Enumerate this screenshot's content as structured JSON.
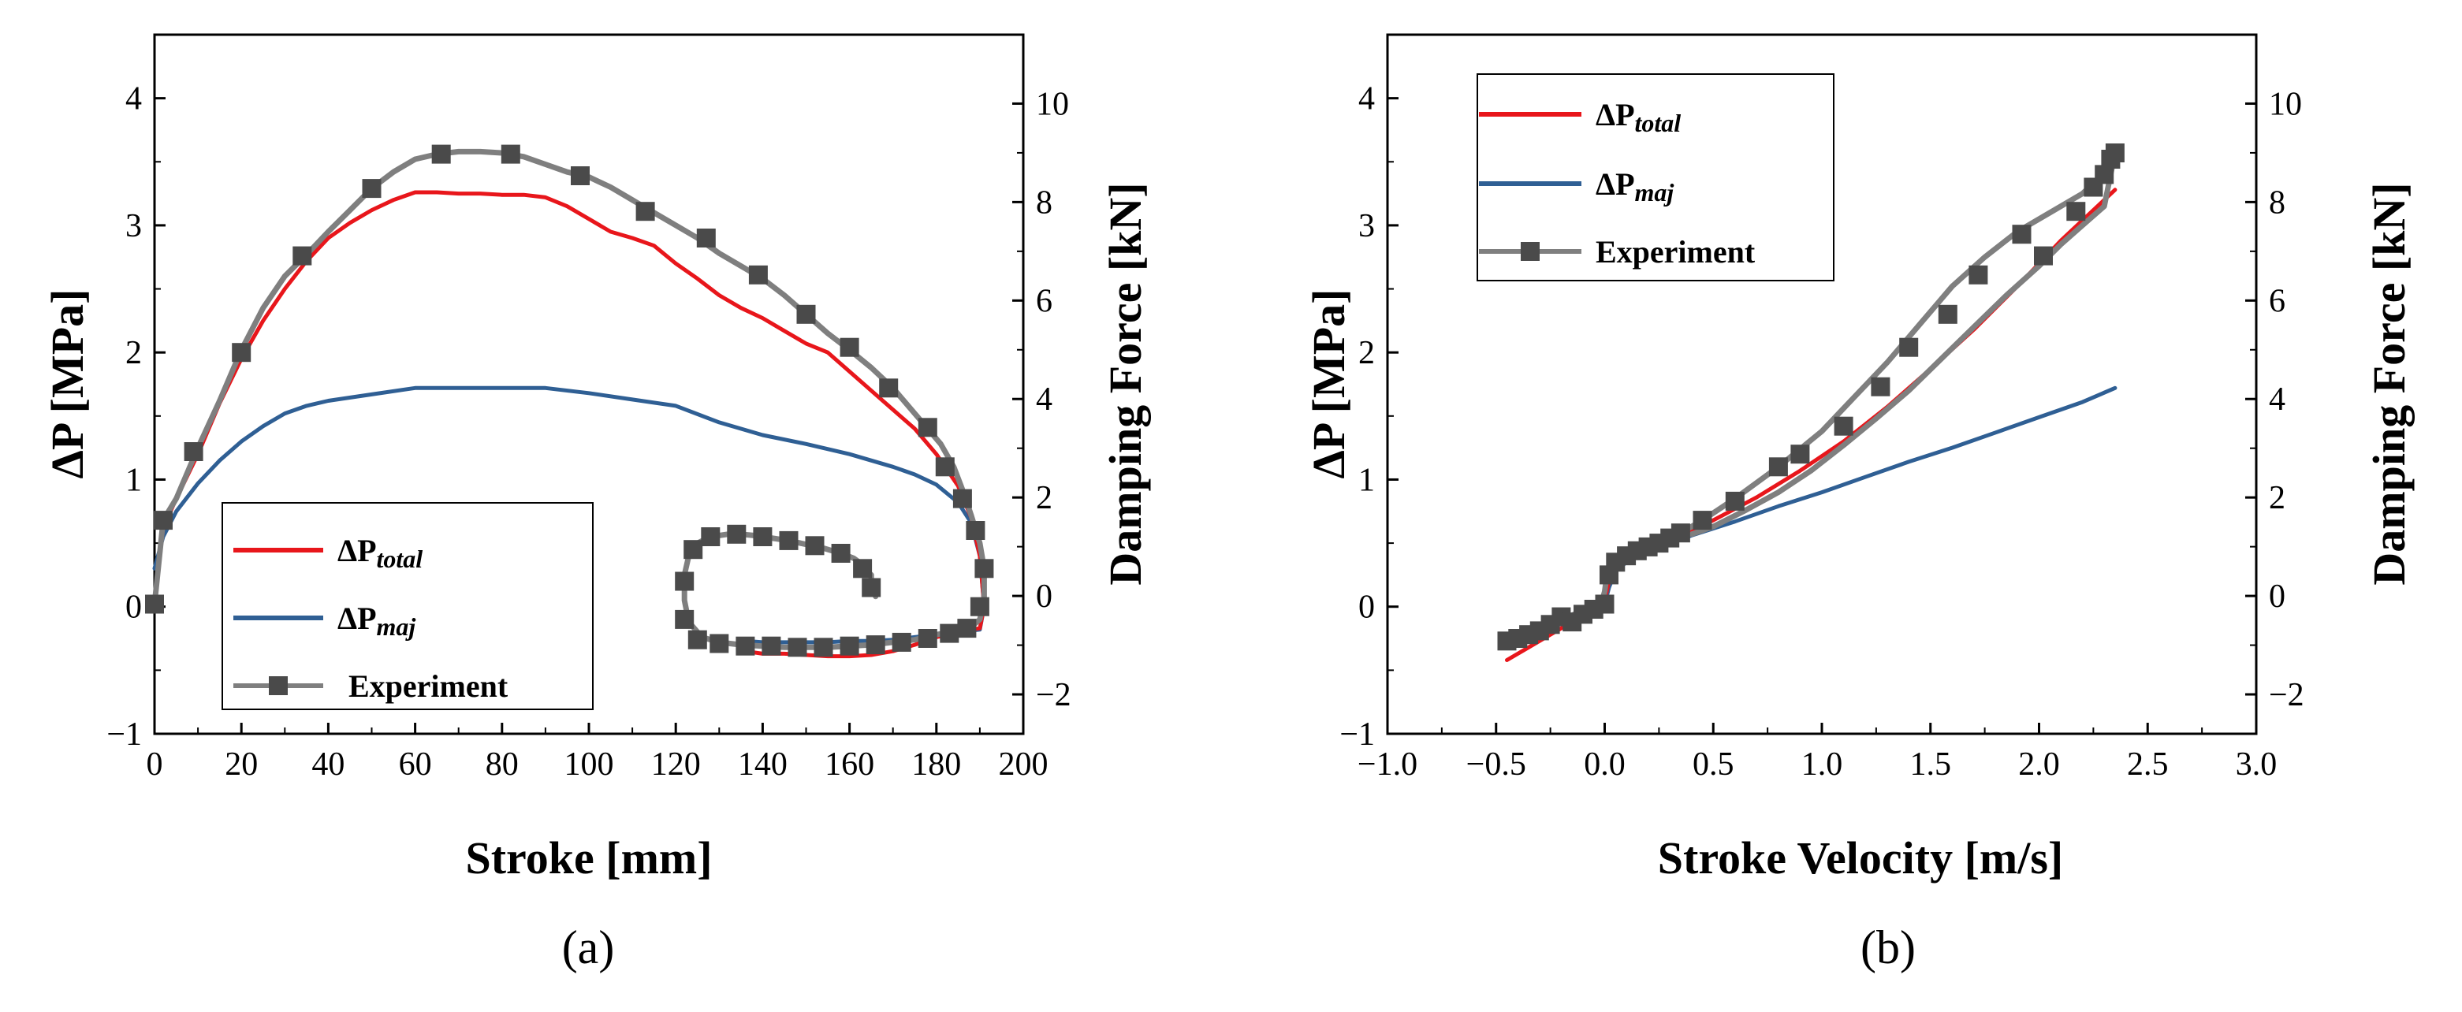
{
  "colors": {
    "total": "#e8161b",
    "maj": "#2f5f94",
    "exp": "#7f7f7f",
    "marker": "#4a4a4a"
  },
  "chart_data": [
    {
      "panel": "(a)",
      "type": "line",
      "xlabel": "Stroke [mm]",
      "ylabel": "ΔP [MPa]",
      "y2label": "Damping Force [kN]",
      "xlim": [
        0,
        200
      ],
      "ylim": [
        -1,
        4.5
      ],
      "y2lim": [
        -2.8,
        11.4
      ],
      "xticks": [
        0,
        20,
        40,
        60,
        80,
        100,
        120,
        140,
        160,
        180,
        200
      ],
      "yticks": [
        -1,
        0,
        1,
        2,
        3,
        4
      ],
      "y2ticks": [
        -2,
        0,
        2,
        4,
        6,
        8,
        10
      ],
      "legend_position": "bottom-left",
      "series": [
        {
          "key": "total",
          "name": "ΔP",
          "name_sub": "total",
          "x": [
            0,
            2,
            5,
            10,
            15,
            20,
            25,
            30,
            35,
            40,
            45,
            50,
            55,
            60,
            65,
            70,
            75,
            80,
            85,
            90,
            95,
            100,
            105,
            110,
            115,
            120,
            125,
            130,
            135,
            140,
            145,
            150,
            155,
            160,
            165,
            170,
            175,
            180,
            185,
            188,
            190,
            191,
            190,
            185,
            180,
            175,
            170,
            165,
            160,
            155,
            150,
            145,
            140,
            136
          ],
          "y": [
            0.05,
            0.62,
            0.85,
            1.2,
            1.6,
            1.95,
            2.25,
            2.5,
            2.72,
            2.9,
            3.02,
            3.12,
            3.2,
            3.26,
            3.26,
            3.25,
            3.25,
            3.24,
            3.24,
            3.22,
            3.15,
            3.05,
            2.95,
            2.9,
            2.84,
            2.7,
            2.58,
            2.45,
            2.35,
            2.27,
            2.17,
            2.07,
            2,
            1.85,
            1.7,
            1.55,
            1.4,
            1.2,
            0.95,
            0.7,
            0.4,
            0,
            -0.17,
            -0.2,
            -0.24,
            -0.3,
            -0.35,
            -0.38,
            -0.39,
            -0.39,
            -0.38,
            -0.37,
            -0.37,
            -0.35
          ]
        },
        {
          "key": "maj",
          "name": "ΔP",
          "name_sub": "maj",
          "x": [
            0,
            2,
            5,
            10,
            15,
            20,
            25,
            30,
            35,
            40,
            50,
            60,
            70,
            80,
            90,
            100,
            110,
            120,
            130,
            140,
            150,
            160,
            170,
            175,
            180,
            185,
            188,
            190,
            191,
            190,
            185,
            180,
            175,
            170,
            165,
            160,
            155,
            150,
            145,
            140,
            136
          ],
          "y": [
            0.3,
            0.55,
            0.75,
            0.97,
            1.15,
            1.3,
            1.42,
            1.52,
            1.58,
            1.62,
            1.67,
            1.72,
            1.72,
            1.72,
            1.72,
            1.68,
            1.63,
            1.58,
            1.45,
            1.35,
            1.28,
            1.2,
            1.1,
            1.04,
            0.96,
            0.82,
            0.66,
            0.4,
            0,
            -0.18,
            -0.2,
            -0.22,
            -0.24,
            -0.26,
            -0.27,
            -0.27,
            -0.28,
            -0.28,
            -0.28,
            -0.28,
            -0.27
          ]
        },
        {
          "key": "exp",
          "name": "Experiment",
          "x": [
            0,
            2,
            5,
            10,
            15,
            20,
            25,
            30,
            35,
            40,
            45,
            50,
            55,
            60,
            65,
            70,
            75,
            80,
            85,
            90,
            95,
            100,
            105,
            110,
            115,
            120,
            125,
            130,
            135,
            140,
            145,
            150,
            155,
            160,
            165,
            170,
            175,
            178,
            181,
            184,
            186,
            188,
            190,
            191,
            191,
            190,
            188,
            185,
            180,
            175,
            170,
            165,
            160,
            155,
            150,
            145,
            140,
            135,
            130,
            126,
            123,
            122,
            122,
            123,
            125,
            128,
            132,
            135,
            138,
            142,
            146,
            150,
            154,
            158,
            161,
            163,
            164,
            165,
            165,
            166,
            166
          ],
          "y": [
            0.02,
            0.68,
            0.85,
            1.25,
            1.62,
            2.02,
            2.35,
            2.6,
            2.77,
            2.95,
            3.12,
            3.29,
            3.42,
            3.52,
            3.56,
            3.58,
            3.58,
            3.57,
            3.54,
            3.48,
            3.42,
            3.38,
            3.3,
            3.2,
            3.1,
            3.0,
            2.9,
            2.78,
            2.68,
            2.58,
            2.45,
            2.3,
            2.15,
            2.02,
            1.88,
            1.72,
            1.52,
            1.4,
            1.28,
            1.1,
            0.92,
            0.72,
            0.5,
            0.3,
            0.05,
            -0.1,
            -0.16,
            -0.19,
            -0.22,
            -0.26,
            -0.28,
            -0.3,
            -0.31,
            -0.32,
            -0.32,
            -0.32,
            -0.31,
            -0.3,
            -0.28,
            -0.24,
            -0.12,
            0.05,
            0.25,
            0.4,
            0.5,
            0.55,
            0.57,
            0.57,
            0.56,
            0.54,
            0.52,
            0.49,
            0.46,
            0.42,
            0.38,
            0.33,
            0.28,
            0.25,
            0.18,
            0.1,
            0.08
          ],
          "markers_x": [
            0,
            2,
            9,
            20,
            34,
            50,
            66,
            82,
            98,
            113,
            127,
            139,
            150,
            160,
            169,
            178,
            182,
            186,
            189,
            191,
            190,
            187,
            183,
            178,
            172,
            166,
            160,
            154,
            148,
            142,
            136,
            130,
            125,
            122,
            122,
            124,
            128,
            134,
            140,
            146,
            152,
            158,
            163,
            165
          ],
          "markers_y": [
            0.02,
            0.68,
            1.22,
            2.0,
            2.76,
            3.29,
            3.56,
            3.56,
            3.39,
            3.11,
            2.9,
            2.61,
            2.3,
            2.04,
            1.72,
            1.41,
            1.1,
            0.85,
            0.6,
            0.3,
            0.0,
            -0.17,
            -0.21,
            -0.25,
            -0.28,
            -0.3,
            -0.31,
            -0.32,
            -0.32,
            -0.31,
            -0.31,
            -0.29,
            -0.26,
            -0.1,
            0.2,
            0.45,
            0.55,
            0.57,
            0.55,
            0.52,
            0.48,
            0.42,
            0.3,
            0.15
          ]
        }
      ]
    },
    {
      "panel": "(b)",
      "type": "line",
      "xlabel": "Stroke Velocity [m/s]",
      "ylabel": "ΔP [MPa]",
      "y2label": "Damping Force [kN]",
      "xlim": [
        -1.0,
        3.0
      ],
      "ylim": [
        -1,
        4.5
      ],
      "y2lim": [
        -2.8,
        11.4
      ],
      "xticks": [
        "−1.0",
        "−0.5",
        "0.0",
        "0.5",
        "1.0",
        "1.5",
        "2.0",
        "2.5",
        "3.0"
      ],
      "yticks": [
        -1,
        0,
        1,
        2,
        3,
        4
      ],
      "y2ticks": [
        -2,
        0,
        2,
        4,
        6,
        8,
        10
      ],
      "legend_position": "top-left",
      "series": [
        {
          "key": "total",
          "name": "ΔP",
          "name_sub": "total",
          "x": [
            -0.45,
            -0.35,
            -0.25,
            -0.15,
            -0.05,
            0.0,
            0.02,
            0.05,
            0.1,
            0.2,
            0.3,
            0.4,
            0.5,
            0.7,
            0.9,
            1.1,
            1.3,
            1.5,
            1.7,
            1.9,
            2.1,
            2.35
          ],
          "y": [
            -0.42,
            -0.32,
            -0.22,
            -0.12,
            -0.03,
            0.05,
            0.2,
            0.33,
            0.4,
            0.47,
            0.54,
            0.6,
            0.68,
            0.86,
            1.07,
            1.3,
            1.57,
            1.87,
            2.18,
            2.52,
            2.88,
            3.28
          ]
        },
        {
          "key": "maj",
          "name": "ΔP",
          "name_sub": "maj",
          "x": [
            -0.45,
            -0.3,
            -0.15,
            -0.05,
            0.0,
            0.02,
            0.05,
            0.1,
            0.2,
            0.3,
            0.4,
            0.6,
            0.8,
            1.0,
            1.2,
            1.4,
            1.6,
            1.8,
            2.0,
            2.2,
            2.35
          ],
          "y": [
            -0.28,
            -0.2,
            -0.1,
            -0.03,
            0.02,
            0.15,
            0.28,
            0.35,
            0.43,
            0.5,
            0.56,
            0.67,
            0.79,
            0.9,
            1.02,
            1.14,
            1.25,
            1.37,
            1.49,
            1.61,
            1.72
          ]
        },
        {
          "key": "exp",
          "name": "Experiment",
          "x": [
            -0.45,
            -0.38,
            -0.3,
            -0.22,
            -0.14,
            -0.07,
            -0.02,
            0.0,
            0.01,
            0.03,
            0.07,
            0.15,
            0.25,
            0.35,
            0.45,
            0.6,
            0.8,
            1.0,
            1.15,
            1.3,
            1.45,
            1.6,
            1.75,
            1.9,
            2.05,
            2.2,
            2.28,
            2.33,
            2.35,
            2.3,
            2.2,
            2.1,
            2.0,
            1.85,
            1.7,
            1.55,
            1.4,
            1.25,
            1.1,
            0.95,
            0.8,
            0.65,
            0.5,
            0.4
          ],
          "y": [
            -0.27,
            -0.23,
            -0.18,
            -0.12,
            -0.06,
            -0.02,
            0.0,
            0.12,
            0.25,
            0.33,
            0.38,
            0.43,
            0.5,
            0.58,
            0.68,
            0.85,
            1.1,
            1.38,
            1.65,
            1.92,
            2.22,
            2.52,
            2.75,
            2.95,
            3.1,
            3.25,
            3.38,
            3.5,
            3.57,
            3.15,
            3.0,
            2.85,
            2.68,
            2.45,
            2.2,
            1.95,
            1.7,
            1.48,
            1.27,
            1.07,
            0.9,
            0.76,
            0.63,
            0.57
          ],
          "markers_x": [
            -0.45,
            -0.4,
            -0.35,
            -0.3,
            -0.25,
            -0.2,
            -0.15,
            -0.1,
            -0.05,
            0.0,
            0.02,
            0.05,
            0.1,
            0.15,
            0.2,
            0.25,
            0.3,
            0.35,
            0.45,
            0.6,
            0.8,
            0.9,
            1.1,
            1.27,
            1.4,
            1.58,
            1.72,
            1.92,
            2.02,
            2.17,
            2.25,
            2.3,
            2.33,
            2.35
          ],
          "markers_y": [
            -0.27,
            -0.25,
            -0.22,
            -0.19,
            -0.14,
            -0.08,
            -0.12,
            -0.06,
            -0.02,
            0.02,
            0.25,
            0.35,
            0.4,
            0.44,
            0.47,
            0.5,
            0.54,
            0.58,
            0.68,
            0.83,
            1.1,
            1.2,
            1.42,
            1.73,
            2.04,
            2.3,
            2.61,
            2.93,
            2.76,
            3.11,
            3.3,
            3.4,
            3.52,
            3.57
          ]
        }
      ]
    }
  ]
}
